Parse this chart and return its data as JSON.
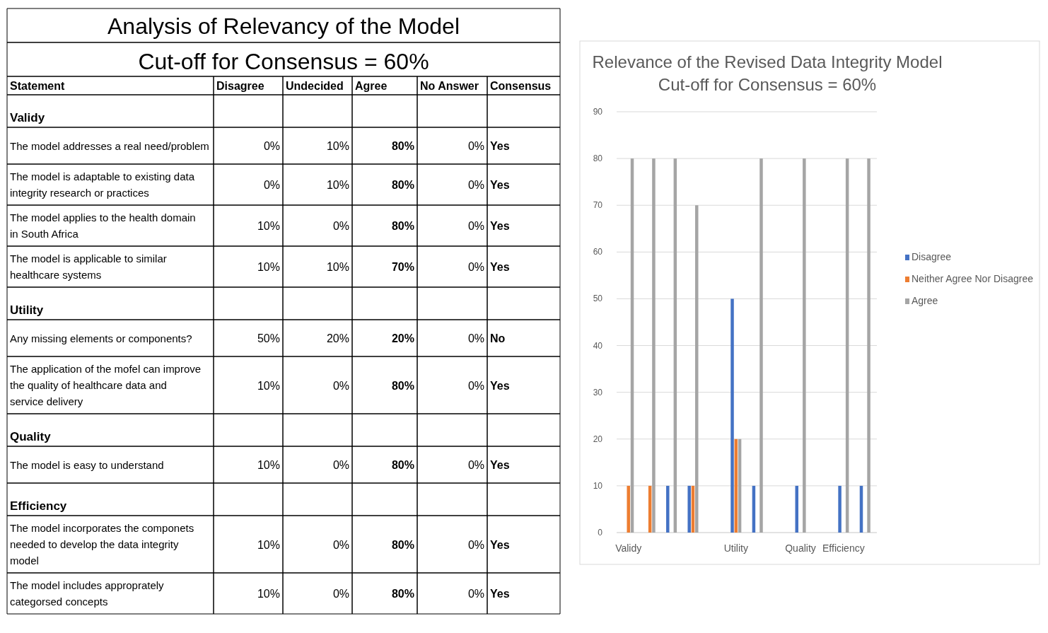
{
  "chart_data": [
    {
      "type": "other",
      "title": "Analysis of Relevancy of the Model",
      "subtitle": "Cut-off for Consensus = 60%",
      "xlabel": "Statement",
      "categories": [
        "Validy",
        "The model addresses a real need/problem",
        "The model is adaptable to existing data integrity research or practices",
        "The model applies to the health domain in South Africa",
        "The model is applicable to similar healthcare systems",
        "Utility",
        "Any missing elements or components?",
        "The application of the mofel can improve the quality of healthcare data and service delivery",
        "Quality",
        "The model is easy to understand",
        "Efficiency",
        "The model incorporates the componets needed to develop the data integrity model",
        "The model includes approprately categorsed concepts"
      ],
      "series": [
        {
          "name": "Disagree",
          "values": [
            null,
            0,
            0,
            10,
            10,
            null,
            50,
            10,
            null,
            10,
            null,
            10,
            10
          ],
          "value_labels": [
            null,
            "0%",
            "0%",
            "10%",
            "10%",
            null,
            "50%",
            "10%",
            null,
            "10%",
            null,
            "10%",
            "10%"
          ]
        },
        {
          "name": "Undecided",
          "values": [
            null,
            10,
            10,
            0,
            10,
            null,
            20,
            0,
            null,
            0,
            null,
            0,
            0
          ],
          "value_labels": [
            null,
            "10%",
            "10%",
            "0%",
            "10%",
            null,
            "20%",
            "0%",
            null,
            "0%",
            null,
            "0%",
            "0%"
          ]
        },
        {
          "name": "Agree",
          "values": [
            null,
            80,
            80,
            80,
            70,
            null,
            20,
            80,
            null,
            80,
            null,
            80,
            80
          ],
          "value_labels": [
            null,
            "80%",
            "80%",
            "80%",
            "70%",
            null,
            "20%",
            "80%",
            null,
            "80%",
            null,
            "80%",
            "80%"
          ]
        },
        {
          "name": "No Answer",
          "values": [
            null,
            0,
            0,
            0,
            0,
            null,
            0,
            0,
            null,
            0,
            null,
            0,
            0
          ],
          "value_labels": [
            null,
            "0%",
            "0%",
            "0%",
            "0%",
            null,
            "0%",
            "0%",
            null,
            "0%",
            null,
            "0%",
            "0%"
          ]
        },
        {
          "name": "Consensus",
          "values": [
            null,
            null,
            null,
            null,
            null,
            null,
            null,
            null,
            null,
            null,
            null,
            null,
            null
          ],
          "value_labels": [
            null,
            "Yes",
            "Yes",
            "Yes",
            "Yes",
            null,
            "No",
            "Yes",
            null,
            "Yes",
            null,
            "Yes",
            "Yes"
          ]
        }
      ]
    },
    {
      "type": "bar",
      "title": "Relevance of the Revised Data Integrity Model",
      "subtitle": "Cut-off for Consensus = 60%",
      "categories": [
        "Validy",
        null,
        null,
        null,
        null,
        "Utility",
        null,
        null,
        "Quality",
        null,
        "Efficiency",
        null
      ],
      "series": [
        {
          "name": "Disagree",
          "color": "#4472c4",
          "values": [
            0,
            0,
            10,
            10,
            null,
            50,
            10,
            null,
            10,
            null,
            10,
            10
          ]
        },
        {
          "name": "Neither Agree Nor Disagree",
          "color": "#ed7d31",
          "values": [
            10,
            10,
            0,
            10,
            null,
            20,
            0,
            null,
            0,
            null,
            0,
            0
          ]
        },
        {
          "name": "Agree",
          "color": "#a5a5a5",
          "values": [
            80,
            80,
            80,
            70,
            null,
            20,
            80,
            null,
            80,
            null,
            80,
            80
          ]
        }
      ],
      "ylim": [
        0,
        90
      ],
      "yticks": [
        0,
        10,
        20,
        30,
        40,
        50,
        60,
        70,
        80,
        90
      ],
      "grid": "y",
      "legend": "right"
    }
  ]
}
